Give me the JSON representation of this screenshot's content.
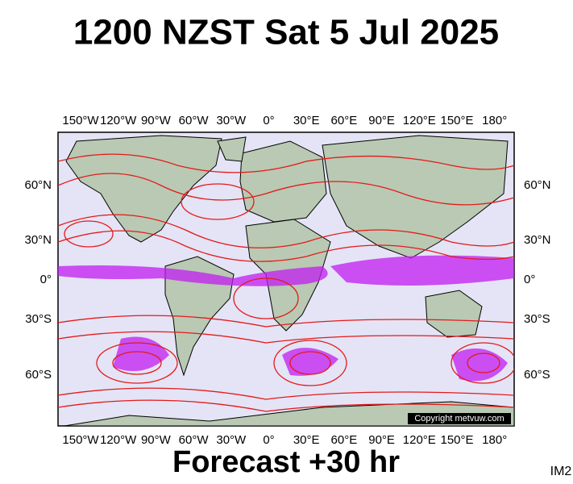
{
  "title": "1200 NZST Sat 5 Jul 2025",
  "footer": "Forecast +30 hr",
  "corner": "IM2",
  "copyright": "Copyright metvuw.com",
  "lon_labels": [
    "150°W",
    "120°W",
    "90°W",
    "60°W",
    "30°W",
    "0°",
    "30°E",
    "60°E",
    "90°E",
    "120°E",
    "150°E",
    "180°"
  ],
  "lat_labels": [
    "60°N",
    "30°N",
    "0°",
    "30°S",
    "60°S"
  ]
}
